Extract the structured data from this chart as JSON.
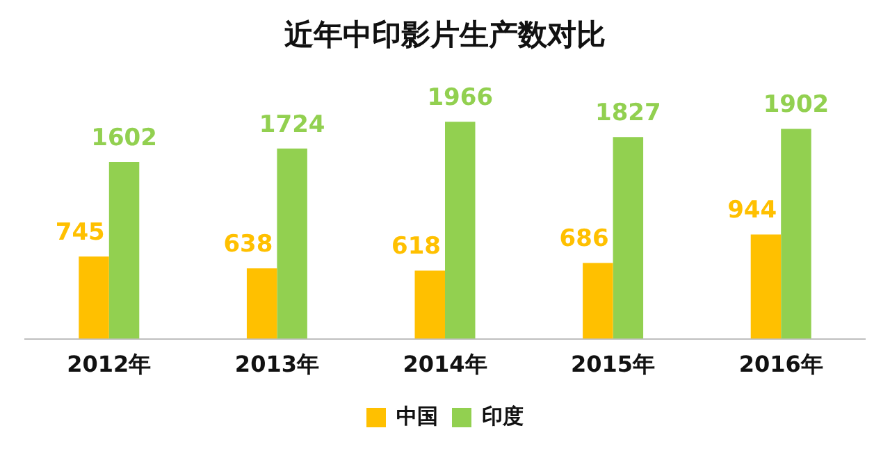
{
  "chart_data": {
    "type": "bar",
    "title": "近年中印影片生产数对比",
    "categories": [
      "2012年",
      "2013年",
      "2014年",
      "2015年",
      "2016年"
    ],
    "series": [
      {
        "name": "中国",
        "color": "#ffc000",
        "values": [
          745,
          638,
          618,
          686,
          944
        ]
      },
      {
        "name": "印度",
        "color": "#92d050",
        "values": [
          1602,
          1724,
          1966,
          1827,
          1902
        ]
      }
    ],
    "data_labels": true,
    "legend": "bottom",
    "grid": false
  }
}
